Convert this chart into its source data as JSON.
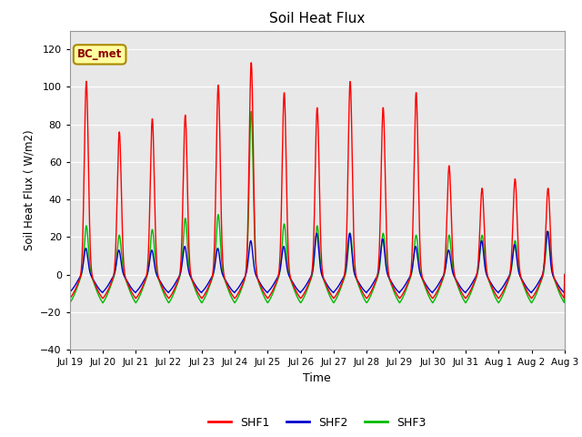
{
  "title": "Soil Heat Flux",
  "xlabel": "Time",
  "ylabel": "Soil Heat Flux ( W/m2)",
  "ylim": [
    -40,
    130
  ],
  "yticks": [
    -40,
    -20,
    0,
    20,
    40,
    60,
    80,
    100,
    120
  ],
  "annotation_text": "BC_met",
  "annotation_color": "#8B0000",
  "annotation_bg": "#FFFFA0",
  "annotation_edge": "#AA8800",
  "colors": {
    "SHF1": "#FF0000",
    "SHF2": "#0000CC",
    "SHF3": "#00BB00"
  },
  "background_color": "#E8E8E8",
  "xtick_labels": [
    "Jul 19",
    "Jul 20",
    "Jul 21",
    "Jul 22",
    "Jul 23",
    "Jul 24",
    "Jul 25",
    "Jul 26",
    "Jul 27",
    "Jul 28",
    "Jul 29",
    "Jul 30",
    "Jul 31",
    "Aug 1",
    "Aug 2",
    "Aug 3"
  ],
  "shf1_peaks": [
    103,
    76,
    83,
    85,
    101,
    113,
    97,
    89,
    103,
    89,
    97,
    58,
    46,
    51,
    46
  ],
  "shf2_peaks": [
    14,
    13,
    13,
    15,
    14,
    18,
    15,
    22,
    22,
    19,
    15,
    13,
    18,
    16,
    23
  ],
  "shf3_peaks": [
    26,
    21,
    24,
    30,
    32,
    87,
    27,
    26,
    22,
    22,
    21,
    21,
    21,
    18,
    23
  ],
  "shf1_night": -16,
  "shf2_night": -12,
  "shf3_night": -19,
  "line_width": 1.0,
  "n_days": 15,
  "samples_per_day": 144
}
